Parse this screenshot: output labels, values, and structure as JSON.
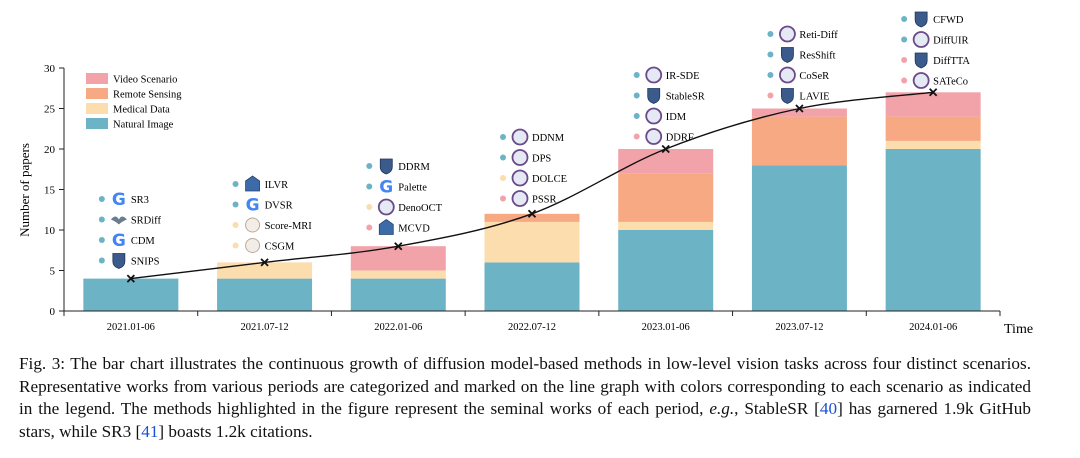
{
  "chart_data": {
    "type": "bar",
    "stacked": true,
    "categories": [
      "2021.01-06",
      "2021.07-12",
      "2022.01-06",
      "2022.07-12",
      "2023.01-06",
      "2023.07-12",
      "2024.01-06"
    ],
    "series": [
      {
        "name": "Natural Image",
        "color": "#6DB3C6",
        "values": [
          4,
          4,
          4,
          6,
          10,
          18,
          20
        ]
      },
      {
        "name": "Medical Data",
        "color": "#FBDDAE",
        "values": [
          0,
          2,
          1,
          5,
          1,
          0,
          1
        ]
      },
      {
        "name": "Remote Sensing",
        "color": "#F6A983",
        "values": [
          0,
          0,
          0,
          1,
          6,
          6,
          3
        ]
      },
      {
        "name": "Video Scenario",
        "color": "#F2A3A9",
        "values": [
          0,
          0,
          3,
          0,
          3,
          1,
          3
        ]
      }
    ],
    "line": {
      "values": [
        4,
        6,
        8,
        12,
        20,
        25,
        27
      ],
      "marker": "x"
    },
    "legend": [
      "Video Scenario",
      "Remote Sensing",
      "Medical Data",
      "Natural Image"
    ],
    "legend_position": "top-left",
    "ylabel": "Number of papers",
    "xlabel": "Time",
    "ylim": [
      0,
      30
    ],
    "yticks": [
      0,
      5,
      10,
      15,
      20,
      25,
      30
    ],
    "annotations": [
      {
        "period": 0,
        "methods": [
          {
            "name": "SR3",
            "icon": "google-icon",
            "color": "#6DB3C6"
          },
          {
            "name": "SRDiff",
            "icon": "bird-icon",
            "color": "#6DB3C6"
          },
          {
            "name": "CDM",
            "icon": "google-icon",
            "color": "#6DB3C6"
          },
          {
            "name": "SNIPS",
            "icon": "shield-icon",
            "color": "#6DB3C6"
          }
        ]
      },
      {
        "period": 1,
        "methods": [
          {
            "name": "ILVR",
            "icon": "building-icon",
            "color": "#6DB3C6"
          },
          {
            "name": "DVSR",
            "icon": "google-icon",
            "color": "#6DB3C6"
          },
          {
            "name": "Score-MRI",
            "icon": "circle-icon",
            "color": "#FBDDAE"
          },
          {
            "name": "CSGM",
            "icon": "circle-icon",
            "color": "#FBDDAE"
          }
        ]
      },
      {
        "period": 2,
        "methods": [
          {
            "name": "DDRM",
            "icon": "shield-icon",
            "color": "#6DB3C6"
          },
          {
            "name": "Palette",
            "icon": "google-icon",
            "color": "#6DB3C6"
          },
          {
            "name": "DenoOCT",
            "icon": "seal-icon",
            "color": "#FBDDAE"
          },
          {
            "name": "MCVD",
            "icon": "building-icon",
            "color": "#F2A3A9"
          }
        ]
      },
      {
        "period": 3,
        "methods": [
          {
            "name": "DDNM",
            "icon": "seal-icon",
            "color": "#6DB3C6"
          },
          {
            "name": "DPS",
            "icon": "seal-icon",
            "color": "#6DB3C6"
          },
          {
            "name": "DOLCE",
            "icon": "seal-icon",
            "color": "#FBDDAE"
          },
          {
            "name": "PSSR",
            "icon": "seal-icon",
            "color": "#F2A3A9"
          }
        ]
      },
      {
        "period": 4,
        "methods": [
          {
            "name": "IR-SDE",
            "icon": "seal-icon",
            "color": "#6DB3C6"
          },
          {
            "name": "StableSR",
            "icon": "shield-icon",
            "color": "#6DB3C6"
          },
          {
            "name": "IDM",
            "icon": "seal-icon",
            "color": "#6DB3C6"
          },
          {
            "name": "DDRF",
            "icon": "seal-icon",
            "color": "#F2A3A9"
          }
        ]
      },
      {
        "period": 5,
        "methods": [
          {
            "name": "Reti-Diff",
            "icon": "seal-icon",
            "color": "#6DB3C6"
          },
          {
            "name": "ResShift",
            "icon": "shield-icon",
            "color": "#6DB3C6"
          },
          {
            "name": "CoSeR",
            "icon": "seal-icon",
            "color": "#6DB3C6"
          },
          {
            "name": "LAVIE",
            "icon": "shield-icon",
            "color": "#F2A3A9"
          }
        ]
      },
      {
        "period": 6,
        "methods": [
          {
            "name": "CFWD",
            "icon": "shield-icon",
            "color": "#6DB3C6"
          },
          {
            "name": "DiffUIR",
            "icon": "seal-icon",
            "color": "#6DB3C6"
          },
          {
            "name": "DiffTTA",
            "icon": "shield-icon",
            "color": "#F2A3A9"
          },
          {
            "name": "SATeCo",
            "icon": "seal-icon",
            "color": "#F2A3A9"
          }
        ]
      }
    ]
  },
  "legend_labels": {
    "video": "Video Scenario",
    "remote": "Remote Sensing",
    "medical": "Medical Data",
    "natural": "Natural Image"
  },
  "caption": {
    "fig": "Fig. 3:",
    "text1": " The bar chart illustrates the continuous growth of diffusion model-based methods in low-level vision tasks across four distinct scenarios. Representative works from various periods are categorized and marked on the line graph with colors corresponding to each scenario as indicated in the legend. The methods highlighted in the figure represent the seminal works of each period, ",
    "eg": "e.g.",
    "text2": ", StableSR [",
    "ref1": "40",
    "text3": "] has garnered 1.9k GitHub stars, while SR3 [",
    "ref2": "41",
    "text4": "] boasts 1.2k citations."
  },
  "colors": {
    "natural": "#6DB3C6",
    "medical": "#FBDDAE",
    "remote": "#F6A983",
    "video": "#F2A3A9",
    "axis": "#222222"
  }
}
